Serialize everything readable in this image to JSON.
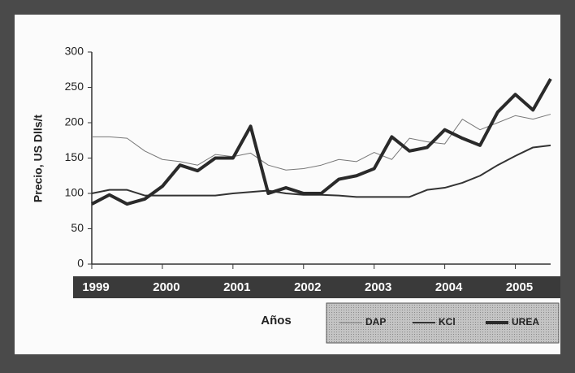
{
  "chart_data": {
    "type": "line",
    "y_label": "Precio, US Dlls/t",
    "x_label": "Años",
    "x": [
      1999,
      1999.25,
      1999.5,
      1999.75,
      2000,
      2000.25,
      2000.5,
      2000.75,
      2001,
      2001.25,
      2001.5,
      2001.75,
      2002,
      2002.25,
      2002.5,
      2002.75,
      2003,
      2003.25,
      2003.5,
      2003.75,
      2004,
      2004.25,
      2004.5,
      2004.75,
      2005,
      2005.25,
      2005.5
    ],
    "series": [
      {
        "name": "DAP",
        "color": "#777777",
        "values": [
          180,
          180,
          178,
          160,
          148,
          145,
          140,
          155,
          152,
          157,
          140,
          133,
          135,
          140,
          148,
          145,
          158,
          148,
          178,
          173,
          170,
          205,
          190,
          200,
          210,
          205,
          212
        ]
      },
      {
        "name": "KCl",
        "color": "#333333",
        "values": [
          100,
          105,
          105,
          97,
          97,
          97,
          97,
          97,
          100,
          102,
          104,
          100,
          98,
          98,
          97,
          95,
          95,
          95,
          95,
          105,
          108,
          115,
          125,
          140,
          153,
          165,
          168
        ]
      },
      {
        "name": "UREA",
        "color": "#2a2a2a",
        "values": [
          85,
          98,
          85,
          92,
          110,
          140,
          132,
          150,
          150,
          195,
          100,
          108,
          100,
          100,
          120,
          125,
          135,
          180,
          160,
          165,
          190,
          178,
          168,
          215,
          240,
          218,
          262
        ]
      }
    ],
    "xlim": [
      1999,
      2005.5
    ],
    "xticks": [
      1999,
      2000,
      2001,
      2002,
      2003,
      2004,
      2005
    ],
    "ylim": [
      0,
      300
    ],
    "yticks": [
      0,
      50,
      100,
      150,
      200,
      250,
      300
    ],
    "grid": false,
    "legend": "bottom-right"
  }
}
